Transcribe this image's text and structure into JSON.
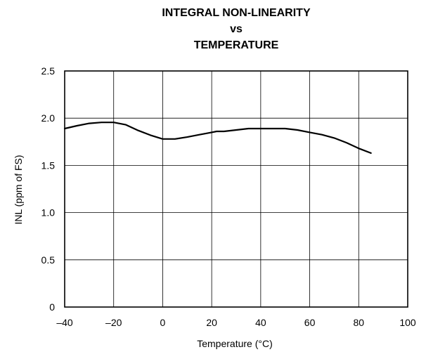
{
  "chart_data": {
    "type": "line",
    "title": [
      "INTEGRAL NON-LINEARITY",
      "vs",
      "TEMPERATURE"
    ],
    "xlabel": "Temperature (°C)",
    "ylabel": "INL (ppm of FS)",
    "xlim": [
      -40,
      100
    ],
    "ylim": [
      0,
      2.5
    ],
    "xticks": [
      -40,
      -20,
      0,
      20,
      40,
      60,
      80,
      100
    ],
    "xtick_labels": [
      "–40",
      "–20",
      "0",
      "20",
      "40",
      "60",
      "80",
      "100"
    ],
    "yticks": [
      0,
      0.5,
      1.0,
      1.5,
      2.0,
      2.5
    ],
    "ytick_labels": [
      "0",
      "0.5",
      "1.0",
      "1.5",
      "2.0",
      "2.5"
    ],
    "grid": true,
    "series": [
      {
        "x": [
          -40,
          -35,
          -30,
          -25,
          -20,
          -15,
          -10,
          -5,
          0,
          5,
          10,
          15,
          20,
          22,
          25,
          30,
          35,
          40,
          45,
          50,
          55,
          60,
          65,
          70,
          75,
          80,
          85
        ],
        "y": [
          1.89,
          1.92,
          1.945,
          1.955,
          1.955,
          1.93,
          1.87,
          1.82,
          1.78,
          1.78,
          1.8,
          1.825,
          1.85,
          1.86,
          1.86,
          1.875,
          1.89,
          1.89,
          1.89,
          1.89,
          1.875,
          1.85,
          1.825,
          1.79,
          1.74,
          1.68,
          1.63
        ]
      }
    ]
  }
}
